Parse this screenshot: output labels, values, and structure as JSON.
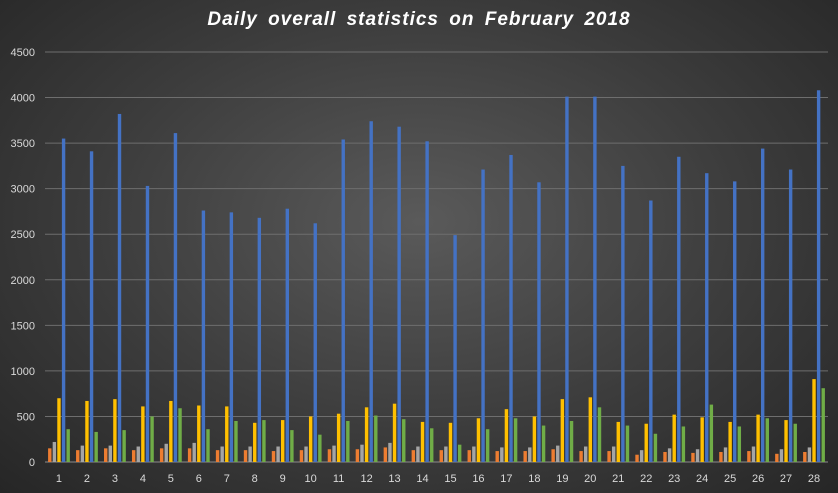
{
  "chart_data": {
    "type": "bar",
    "title": "Daily overall statistics on  February 2018",
    "xlabel": "",
    "ylabel": "",
    "ylim": [
      0,
      4500
    ],
    "yticks": [
      0,
      500,
      1000,
      1500,
      2000,
      2500,
      3000,
      3500,
      4000,
      4500
    ],
    "grid": true,
    "legend": "none",
    "categories": [
      "1",
      "2",
      "3",
      "4",
      "5",
      "6",
      "7",
      "8",
      "9",
      "10",
      "11",
      "12",
      "13",
      "14",
      "15",
      "16",
      "17",
      "18",
      "19",
      "20",
      "21",
      "22",
      "23",
      "24",
      "25",
      "26",
      "27",
      "28"
    ],
    "series": [
      {
        "color": "#ED7D31",
        "values": [
          150,
          130,
          150,
          130,
          150,
          150,
          130,
          130,
          120,
          130,
          140,
          140,
          160,
          130,
          130,
          130,
          120,
          120,
          140,
          120,
          120,
          80,
          110,
          100,
          110,
          120,
          90,
          110
        ]
      },
      {
        "color": "#A5A5A5",
        "values": [
          220,
          180,
          180,
          170,
          200,
          210,
          170,
          170,
          170,
          170,
          180,
          190,
          210,
          170,
          170,
          170,
          160,
          160,
          180,
          170,
          170,
          130,
          150,
          140,
          160,
          170,
          140,
          160
        ]
      },
      {
        "color": "#FFC000",
        "values": [
          700,
          670,
          690,
          610,
          670,
          620,
          610,
          430,
          460,
          500,
          530,
          600,
          640,
          440,
          430,
          480,
          580,
          500,
          690,
          710,
          440,
          420,
          520,
          490,
          440,
          520,
          460,
          910
        ]
      },
      {
        "color": "#4472C4",
        "values": [
          3550,
          3410,
          3820,
          3030,
          3610,
          2760,
          2740,
          2680,
          2780,
          2620,
          3540,
          3740,
          3680,
          3520,
          2490,
          3210,
          3370,
          3070,
          4010,
          4010,
          3250,
          2870,
          3350,
          3170,
          3080,
          3440,
          3210,
          4080
        ]
      },
      {
        "color": "#70AD47",
        "values": [
          360,
          330,
          350,
          500,
          590,
          360,
          450,
          460,
          350,
          300,
          450,
          510,
          470,
          370,
          190,
          360,
          480,
          400,
          450,
          600,
          400,
          310,
          390,
          630,
          390,
          480,
          420,
          810
        ]
      }
    ]
  }
}
